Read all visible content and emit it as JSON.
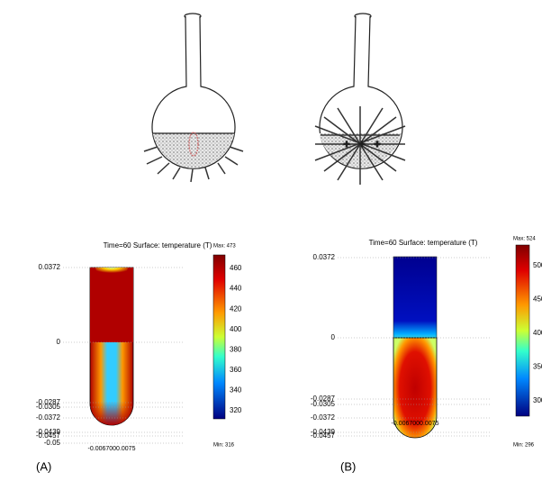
{
  "panels": [
    {
      "label": "(A)",
      "plot_title": "Time=60  Surface: temperature (T)",
      "yticks": [
        "0.0372",
        "0",
        "-0.0287",
        "-0.0305",
        "-0.0372",
        "-0.0439",
        "-0.0457",
        "-0.05"
      ],
      "xticks": "-0.0067000.0075",
      "colorbar_max": "Max: 473",
      "colorbar_min": "Min: 316",
      "colorbar_ticks": [
        460,
        440,
        420,
        400,
        380,
        360,
        340,
        320
      ]
    },
    {
      "label": "(B)",
      "plot_title": "Time=60  Surface: temperature (T)",
      "yticks": [
        "0.0372",
        "0",
        "-0.0287",
        "-0.0305",
        "-0.0372",
        "-0.0439",
        "-0.0457"
      ],
      "xticks": "-0.0067000.0075",
      "colorbar_max": "Max: 524",
      "colorbar_min": "Min: 296",
      "colorbar_ticks": [
        500,
        450,
        400,
        350,
        300
      ]
    }
  ]
}
